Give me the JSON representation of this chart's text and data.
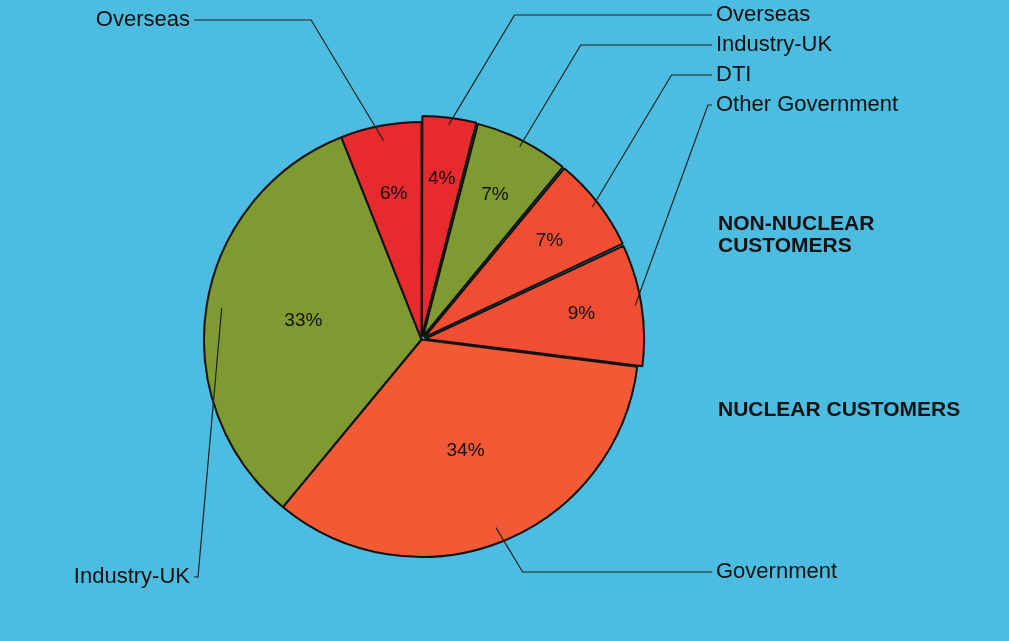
{
  "chart_data": {
    "type": "pie",
    "categories": [
      "Overseas",
      "Industry-UK",
      "DTI",
      "Other Government",
      "Government",
      "Industry-UK",
      "Overseas"
    ],
    "values": [
      4,
      7,
      7,
      9,
      34,
      33,
      6
    ],
    "value_labels": [
      "4%",
      "7%",
      "7%",
      "9%",
      "34%",
      "33%",
      "6%"
    ],
    "colors": [
      "#e62a2e",
      "#7e9a30",
      "#f04e32",
      "#f04e32",
      "#f25a36",
      "#7e9a30",
      "#e62a2e"
    ],
    "annotations": [
      "NON-NUCLEAR CUSTOMERS",
      "NUCLEAR CUSTOMERS"
    ],
    "legend": false
  }
}
